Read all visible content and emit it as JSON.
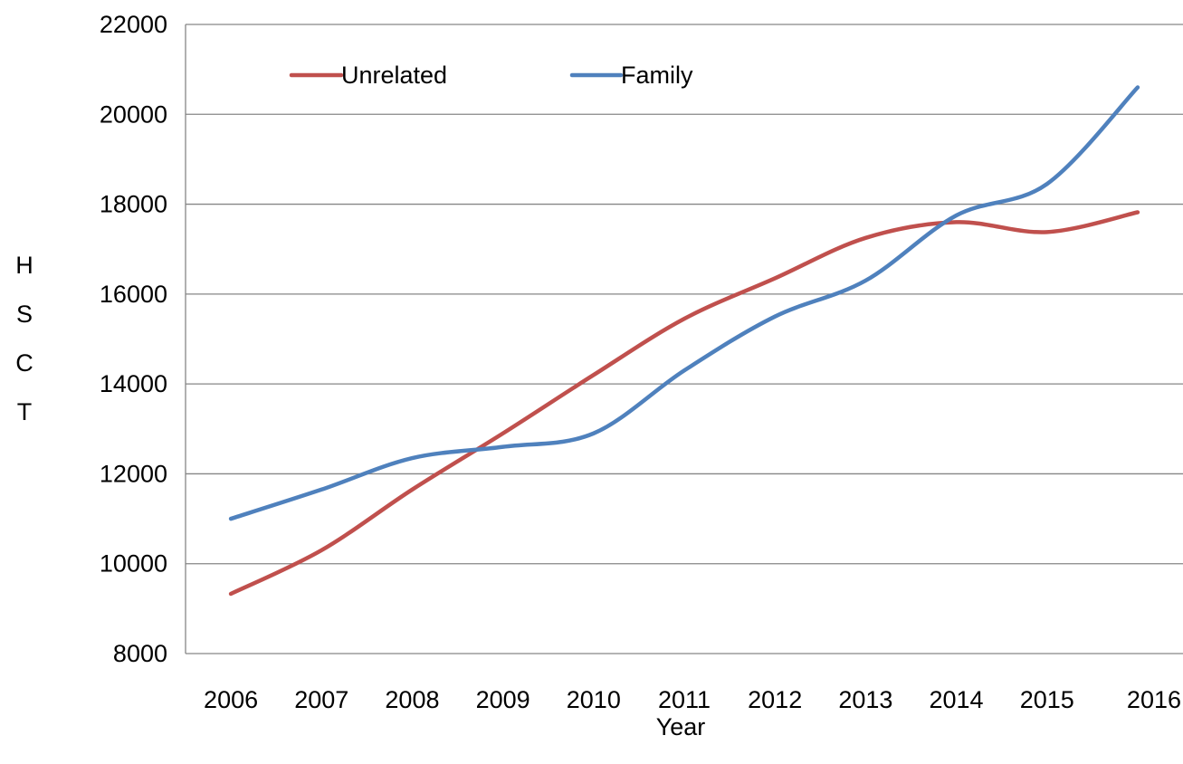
{
  "chart_data": {
    "type": "line",
    "title": "",
    "xlabel": "Year",
    "ylabel": "HSCT",
    "categories": [
      "2006",
      "2007",
      "2008",
      "2009",
      "2010",
      "2011",
      "2012",
      "2013",
      "2014",
      "2015",
      "2016"
    ],
    "ylim": [
      8000,
      22000
    ],
    "yticks": [
      8000,
      10000,
      12000,
      14000,
      16000,
      18000,
      20000,
      22000
    ],
    "grid": "horizontal",
    "legend_position": "top-left",
    "series": [
      {
        "name": "Unrelated",
        "color": "#C0504D",
        "values": [
          9330,
          10300,
          11650,
          12900,
          14200,
          15450,
          16350,
          17250,
          17600,
          17380,
          17820
        ]
      },
      {
        "name": "Family",
        "color": "#4F81BD",
        "values": [
          11000,
          11650,
          12350,
          12600,
          12900,
          14300,
          15500,
          16300,
          17750,
          18450,
          20600
        ]
      }
    ]
  }
}
